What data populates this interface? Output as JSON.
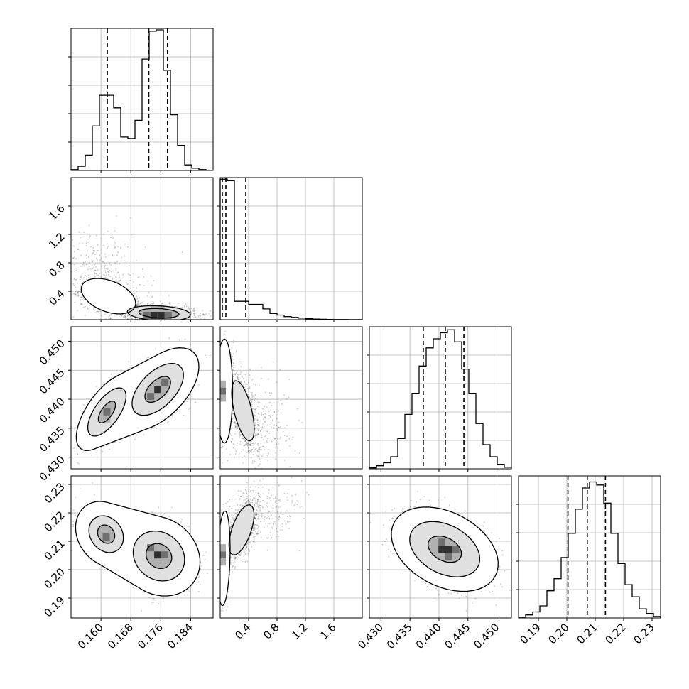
{
  "chart_data": {
    "type": "corner",
    "colors": {
      "ink": "#000000",
      "grid": "#b0b0b0",
      "frame": "#000000",
      "dens": [
        "#ffffff",
        "#e0e0e0",
        "#b0b0b0",
        "#707070",
        "#303030"
      ]
    },
    "grid": true,
    "parameters": [
      {
        "range": [
          0.152,
          0.19
        ],
        "ticks": [
          "0.160",
          "0.168",
          "0.176",
          "0.184"
        ],
        "quantiles": [
          0.1617,
          0.1728,
          0.1778
        ],
        "hist_edges": [
          0.152,
          0.19
        ],
        "hist": [
          0.3,
          1.5,
          5.5,
          16,
          27,
          27,
          22.5,
          12,
          11.5,
          18,
          40,
          50,
          50.5,
          36,
          20,
          9,
          2,
          0.8,
          0.3,
          0.1
        ],
        "hist_max": 51
      },
      {
        "range": [
          0.0,
          2.0
        ],
        "ticks": [
          "0.4",
          "0.8",
          "1.2",
          "1.6"
        ],
        "quantiles": [
          0.03,
          0.08,
          0.36
        ],
        "hist_edges": [
          0.0,
          2.0
        ],
        "hist": [
          92,
          91,
          12,
          12,
          10,
          10,
          7,
          4,
          3,
          2,
          1.5,
          1,
          0.6,
          0.4,
          0.3,
          0.2,
          0.1,
          0.1,
          0.05,
          0.05
        ],
        "hist_max": 93
      },
      {
        "range": [
          0.428,
          0.4525
        ],
        "ticks": [
          "0.430",
          "0.435",
          "0.440",
          "0.445",
          "0.450"
        ],
        "quantiles": [
          0.4373,
          0.4411,
          0.4443
        ],
        "hist_edges": [
          0.428,
          0.4525
        ],
        "hist": [
          0.3,
          1,
          2,
          4,
          10,
          18,
          25,
          34,
          40,
          43,
          45,
          46,
          42,
          33,
          25,
          15,
          8,
          4,
          1.5,
          0.5
        ],
        "hist_max": 47
      },
      {
        "range": [
          0.183,
          0.233
        ],
        "ticks": [
          "0.19",
          "0.20",
          "0.21",
          "0.22",
          "0.23"
        ],
        "quantiles": [
          0.2004,
          0.2072,
          0.2136
        ],
        "hist_edges": [
          0.183,
          0.233
        ],
        "hist": [
          0.3,
          1,
          2,
          4,
          9,
          13,
          20,
          28,
          36,
          43,
          45,
          44,
          38,
          28,
          18,
          11,
          7,
          3,
          1.5,
          0.5
        ],
        "hist_max": 47
      }
    ],
    "pairs": [
      {
        "row": 1,
        "col": 0,
        "clusters": [
          {
            "mx": 0.162,
            "my": 0.33,
            "sx": 0.0035,
            "sy": 0.12,
            "rho": -0.4,
            "n": 900
          },
          {
            "mx": 0.1755,
            "my": 0.09,
            "sx": 0.0048,
            "sy": 0.06,
            "rho": -0.2,
            "n": 1300
          },
          {
            "mx": 0.16,
            "my": 0.6,
            "sx": 0.006,
            "sy": 0.35,
            "rho": -0.3,
            "n": 350
          }
        ],
        "contours": [
          {
            "level": 1,
            "clusters": [
              0
            ],
            "k": 1.3
          },
          {
            "level": 2,
            "clusters": [
              1
            ],
            "k": 1.1
          },
          {
            "level": 3,
            "clusters": [
              1
            ],
            "k": 0.7
          }
        ],
        "cells": [
          {
            "x": 0.1742,
            "y": 0.06,
            "shade": 4
          },
          {
            "x": 0.1761,
            "y": 0.06,
            "shade": 4
          },
          {
            "x": 0.178,
            "y": 0.06,
            "shade": 3
          },
          {
            "x": 0.1723,
            "y": 0.06,
            "shade": 3
          },
          {
            "x": 0.1761,
            "y": 0.16,
            "shade": 2
          },
          {
            "x": 0.1742,
            "y": 0.16,
            "shade": 2
          }
        ]
      },
      {
        "row": 2,
        "col": 0,
        "clusters": [
          {
            "mx": 0.1616,
            "my": 0.4378,
            "sx": 0.0032,
            "sy": 0.0026,
            "rho": 0.65,
            "n": 1000
          },
          {
            "mx": 0.1752,
            "my": 0.4417,
            "sx": 0.0043,
            "sy": 0.0028,
            "rho": 0.55,
            "n": 1400
          }
        ],
        "contours": [
          {
            "level": 1,
            "clusters": [
              0,
              1
            ],
            "k": 1.6
          },
          {
            "level": 2,
            "clusters": [
              0
            ],
            "k": 1.0
          },
          {
            "level": 2,
            "clusters": [
              1
            ],
            "k": 1.0
          },
          {
            "level": 3,
            "clusters": [
              1
            ],
            "k": 0.5
          },
          {
            "level": 3,
            "clusters": [
              0
            ],
            "k": 0.45
          }
        ],
        "cells": [
          {
            "x": 0.1752,
            "y": 0.4417,
            "shade": 4
          },
          {
            "x": 0.1771,
            "y": 0.4429,
            "shade": 3
          },
          {
            "x": 0.1733,
            "y": 0.4405,
            "shade": 3
          },
          {
            "x": 0.1616,
            "y": 0.4378,
            "shade": 3
          },
          {
            "x": 0.1771,
            "y": 0.4417,
            "shade": 2
          },
          {
            "x": 0.1733,
            "y": 0.4417,
            "shade": 2
          },
          {
            "x": 0.1616,
            "y": 0.4366,
            "shade": 2
          }
        ]
      },
      {
        "row": 2,
        "col": 1,
        "clusters": [
          {
            "mx": 0.06,
            "my": 0.4414,
            "sx": 0.045,
            "sy": 0.0035,
            "rho": 0.0,
            "n": 1300
          },
          {
            "mx": 0.32,
            "my": 0.438,
            "sx": 0.11,
            "sy": 0.0036,
            "rho": -0.6,
            "n": 900
          },
          {
            "mx": 0.5,
            "my": 0.437,
            "sx": 0.3,
            "sy": 0.004,
            "rho": -0.3,
            "n": 300
          }
        ],
        "contours": [
          {
            "level": 1,
            "clusters": [
              0
            ],
            "k": 1.6
          },
          {
            "level": 2,
            "clusters": [
              1
            ],
            "k": 0.9
          }
        ],
        "cells": [
          {
            "x": 0.03,
            "y": 0.4414,
            "shade": 3
          },
          {
            "x": 0.03,
            "y": 0.4402,
            "shade": 2
          },
          {
            "x": 0.03,
            "y": 0.4426,
            "shade": 2
          }
        ]
      },
      {
        "row": 3,
        "col": 0,
        "clusters": [
          {
            "mx": 0.1614,
            "my": 0.2125,
            "sx": 0.0032,
            "sy": 0.0045,
            "rho": -0.2,
            "n": 1000
          },
          {
            "mx": 0.1755,
            "my": 0.2048,
            "sx": 0.0043,
            "sy": 0.0055,
            "rho": -0.15,
            "n": 1400
          }
        ],
        "contours": [
          {
            "level": 1,
            "clusters": [
              0,
              1
            ],
            "k": 1.6
          },
          {
            "level": 2,
            "clusters": [
              1
            ],
            "k": 1.0
          },
          {
            "level": 2,
            "clusters": [
              0
            ],
            "k": 0.9
          },
          {
            "level": 3,
            "clusters": [
              1
            ],
            "k": 0.5
          },
          {
            "level": 3,
            "clusters": [
              0
            ],
            "k": 0.45
          }
        ],
        "cells": [
          {
            "x": 0.1752,
            "y": 0.2052,
            "shade": 4
          },
          {
            "x": 0.1771,
            "y": 0.2052,
            "shade": 3
          },
          {
            "x": 0.1733,
            "y": 0.2077,
            "shade": 3
          },
          {
            "x": 0.1614,
            "y": 0.2115,
            "shade": 3
          },
          {
            "x": 0.1771,
            "y": 0.2027,
            "shade": 2
          },
          {
            "x": 0.1752,
            "y": 0.2077,
            "shade": 2
          }
        ]
      },
      {
        "row": 3,
        "col": 1,
        "clusters": [
          {
            "mx": 0.05,
            "my": 0.204,
            "sx": 0.035,
            "sy": 0.0065,
            "rho": 0.2,
            "n": 1200
          },
          {
            "mx": 0.3,
            "my": 0.214,
            "sx": 0.11,
            "sy": 0.0055,
            "rho": 0.6,
            "n": 1000
          },
          {
            "mx": 0.5,
            "my": 0.218,
            "sx": 0.3,
            "sy": 0.006,
            "rho": 0.3,
            "n": 300
          }
        ],
        "contours": [
          {
            "level": 1,
            "clusters": [
              0
            ],
            "k": 1.6
          },
          {
            "level": 2,
            "clusters": [
              1
            ],
            "k": 1.0
          }
        ],
        "cells": [
          {
            "x": 0.03,
            "y": 0.2052,
            "shade": 3
          },
          {
            "x": 0.03,
            "y": 0.2027,
            "shade": 2
          },
          {
            "x": 0.03,
            "y": 0.2077,
            "shade": 2
          }
        ]
      },
      {
        "row": 3,
        "col": 2,
        "clusters": [
          {
            "mx": 0.441,
            "my": 0.2072,
            "sx": 0.0036,
            "sy": 0.0058,
            "rho": -0.35,
            "n": 2400
          }
        ],
        "contours": [
          {
            "level": 1,
            "clusters": [
              0
            ],
            "k": 1.6
          },
          {
            "level": 2,
            "clusters": [
              0
            ],
            "k": 1.05
          },
          {
            "level": 3,
            "clusters": [
              0
            ],
            "k": 0.5
          }
        ],
        "cells": [
          {
            "x": 0.4417,
            "y": 0.2072,
            "shade": 4
          },
          {
            "x": 0.4405,
            "y": 0.2072,
            "shade": 4
          },
          {
            "x": 0.4429,
            "y": 0.2072,
            "shade": 3
          },
          {
            "x": 0.4405,
            "y": 0.2097,
            "shade": 3
          },
          {
            "x": 0.4417,
            "y": 0.2047,
            "shade": 3
          },
          {
            "x": 0.4393,
            "y": 0.2097,
            "shade": 2
          },
          {
            "x": 0.4429,
            "y": 0.2047,
            "shade": 2
          },
          {
            "x": 0.4393,
            "y": 0.2072,
            "shade": 2
          }
        ]
      }
    ]
  }
}
